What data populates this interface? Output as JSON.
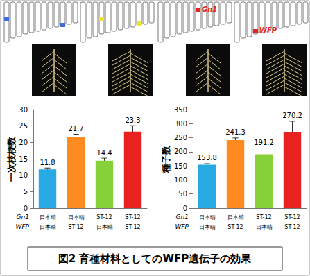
{
  "schematic_labels": [
    "Gn1",
    "WFP"
  ],
  "caption": "図2 育種材料としてのWFP遺伝子の効果",
  "chart_data": [
    {
      "type": "bar",
      "y_label": "一次枝梗数",
      "category_row_names": [
        "Gn1",
        "WFP"
      ],
      "categories": [
        [
          "日本晴",
          "日本晴"
        ],
        [
          "日本晴",
          "ST-12"
        ],
        [
          "ST-12",
          "日本晴"
        ],
        [
          "ST-12",
          "ST-12"
        ]
      ],
      "values": [
        11.8,
        21.7,
        14.4,
        23.3
      ],
      "errors": [
        0.4,
        0.8,
        0.8,
        1.8
      ],
      "colors": [
        "#27a9e1",
        "#ff8a1f",
        "#86d13a",
        "#e8231f"
      ],
      "ylim": [
        0,
        30
      ],
      "yticks": [
        0,
        5,
        10,
        15,
        20,
        25,
        30
      ],
      "data_labels": true,
      "grid": false
    },
    {
      "type": "bar",
      "y_label": "種子数",
      "category_row_names": [
        "Gn1",
        "WFP"
      ],
      "categories": [
        [
          "日本晴",
          "日本晴"
        ],
        [
          "日本晴",
          "ST-12"
        ],
        [
          "ST-12",
          "日本晴"
        ],
        [
          "ST-12",
          "ST-12"
        ]
      ],
      "values": [
        153.8,
        241.3,
        191.2,
        270.2
      ],
      "errors": [
        4,
        8,
        22,
        38
      ],
      "colors": [
        "#27a9e1",
        "#ff8a1f",
        "#86d13a",
        "#e8231f"
      ],
      "ylim": [
        0,
        350
      ],
      "yticks": [
        0,
        50,
        100,
        150,
        200,
        250,
        300,
        350
      ],
      "data_labels": true,
      "grid": false
    }
  ]
}
